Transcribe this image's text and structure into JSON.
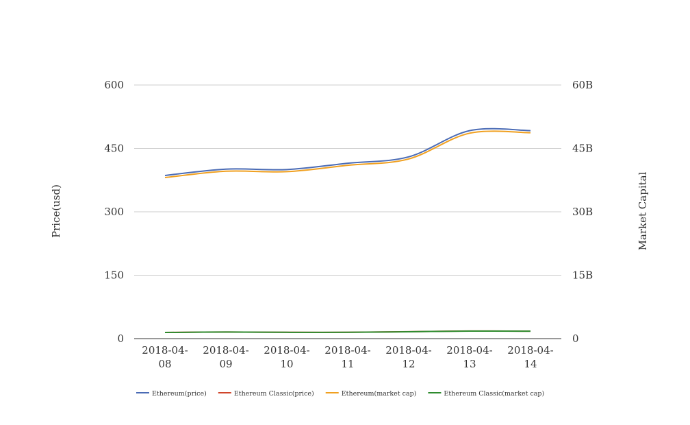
{
  "chart_data": {
    "type": "line",
    "title": "",
    "xlabel": "",
    "ylabel": "Price(usd)",
    "y2label": "Market Capital",
    "categories": [
      "2018-04-08",
      "2018-04-09",
      "2018-04-10",
      "2018-04-11",
      "2018-04-12",
      "2018-04-13",
      "2018-04-14"
    ],
    "x_tick_labels": [
      [
        "2018-04-",
        "08"
      ],
      [
        "2018-04-",
        "09"
      ],
      [
        "2018-04-",
        "10"
      ],
      [
        "2018-04-",
        "11"
      ],
      [
        "2018-04-",
        "12"
      ],
      [
        "2018-04-",
        "13"
      ],
      [
        "2018-04-",
        "14"
      ]
    ],
    "ylim": [
      0,
      600
    ],
    "y_ticks": [
      0,
      150,
      300,
      450,
      600
    ],
    "y2lim": [
      0,
      60000000000
    ],
    "y2_ticks": [
      0,
      15000000000,
      30000000000,
      45000000000,
      60000000000
    ],
    "y2_tick_labels": [
      "0",
      "15B",
      "30B",
      "45B",
      "60B"
    ],
    "grid": true,
    "legend_position": "bottom",
    "series": [
      {
        "name": "Ethereum(price)",
        "axis": "left",
        "color": "#4a6bb5",
        "values": [
          386,
          401,
          400,
          415,
          430,
          492,
          492
        ]
      },
      {
        "name": "Ethereum Classic(price)",
        "axis": "left",
        "color": "#d0452b",
        "values": [
          14.6,
          15.6,
          15.0,
          15.0,
          16.4,
          18.0,
          17.6
        ]
      },
      {
        "name": "Ethereum(market cap)",
        "axis": "right",
        "color": "#f0a020",
        "values": [
          38100000000,
          39600000000,
          39500000000,
          41000000000,
          42500000000,
          48600000000,
          48700000000
        ]
      },
      {
        "name": "Ethereum Classic(market cap)",
        "axis": "right",
        "color": "#2e8b2e",
        "values": [
          1450000000,
          1560000000,
          1490000000,
          1490000000,
          1630000000,
          1790000000,
          1760000000
        ]
      }
    ]
  }
}
